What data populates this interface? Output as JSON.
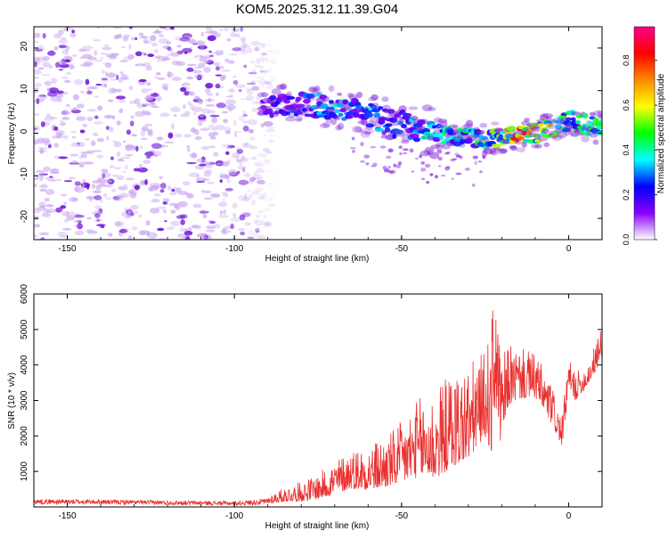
{
  "title": "KOM5.2025.312.11.39.G04",
  "colors": {
    "snr_line": "#e8312f",
    "axis": "#000000",
    "background": "#ffffff"
  },
  "chart_data": [
    {
      "type": "heatmap",
      "name": "spectrogram",
      "xlabel": "Height of straight line (km)",
      "ylabel": "Frequency (Hz)",
      "xlim": [
        -160,
        10
      ],
      "ylim": [
        -25,
        25
      ],
      "xticks": [
        -150,
        -100,
        -50,
        0
      ],
      "yticks": [
        -20,
        -10,
        0,
        10,
        20
      ],
      "xtick_labels": [
        "-150",
        "-100",
        "-50",
        "0"
      ],
      "ytick_labels": [
        "-20",
        "-10",
        "0",
        "10",
        "20"
      ],
      "colorbar": {
        "label": "Normalized spectral amplitude",
        "range": [
          0,
          0.95
        ],
        "ticks": [
          0.0,
          0.2,
          0.4,
          0.6,
          0.8
        ],
        "tick_labels": [
          "0.0",
          "0.2",
          "0.4",
          "0.6",
          "0.8"
        ],
        "colormap": [
          "#ffffff",
          "#8a00ff",
          "#0000ff",
          "#00ffff",
          "#00ff00",
          "#ffff00",
          "#ff8800",
          "#ff0000",
          "#ff0088"
        ]
      },
      "noise_region_x": [
        -160,
        -87
      ],
      "signal_track": {
        "x": [
          -100,
          -90,
          -85,
          -80,
          -75,
          -70,
          -65,
          -60,
          -55,
          -50,
          -45,
          -40,
          -35,
          -30,
          -25,
          -20,
          -15,
          -10,
          -5,
          0,
          5,
          10
        ],
        "y": [
          5,
          6,
          7,
          7,
          6.5,
          6,
          5,
          4,
          3,
          2,
          1,
          0,
          -0.5,
          -1,
          -1.5,
          -1,
          -0.5,
          0,
          1,
          3,
          2,
          1
        ],
        "amplitude": [
          0.1,
          0.15,
          0.25,
          0.3,
          0.3,
          0.35,
          0.3,
          0.3,
          0.3,
          0.3,
          0.35,
          0.35,
          0.4,
          0.4,
          0.45,
          0.55,
          0.8,
          0.6,
          0.5,
          0.45,
          0.45,
          0.4
        ]
      }
    },
    {
      "type": "line",
      "name": "snr",
      "xlabel": "Height of straight line (km)",
      "ylabel": "SNR (10 * v/v)",
      "xlim": [
        -160,
        10
      ],
      "ylim": [
        0,
        6000
      ],
      "xticks": [
        -150,
        -100,
        -50,
        0
      ],
      "yticks": [
        1000,
        2000,
        3000,
        4000,
        5000,
        6000
      ],
      "xtick_labels": [
        "-150",
        "-100",
        "-50",
        "0"
      ],
      "ytick_labels": [
        "1000",
        "2000",
        "3000",
        "4000",
        "5000",
        "6000"
      ],
      "envelope": {
        "x": [
          -160,
          -140,
          -120,
          -100,
          -90,
          -85,
          -80,
          -75,
          -70,
          -65,
          -60,
          -55,
          -50,
          -45,
          -40,
          -35,
          -30,
          -25,
          -22,
          -20,
          -18,
          -15,
          -10,
          -5,
          -2,
          0,
          2,
          5,
          8,
          10
        ],
        "base": [
          150,
          140,
          120,
          100,
          150,
          250,
          300,
          400,
          600,
          800,
          800,
          900,
          1100,
          1400,
          1400,
          1800,
          2000,
          2600,
          2300,
          2400,
          3300,
          3400,
          3400,
          2600,
          1900,
          3500,
          3200,
          3500,
          4000,
          4500
        ],
        "amplitude": [
          120,
          110,
          100,
          100,
          150,
          250,
          350,
          450,
          600,
          700,
          800,
          900,
          1100,
          1400,
          1600,
          1700,
          1700,
          1500,
          2600,
          1500,
          1100,
          900,
          800,
          700,
          500,
          600,
          500,
          400,
          500,
          600
        ]
      }
    }
  ]
}
